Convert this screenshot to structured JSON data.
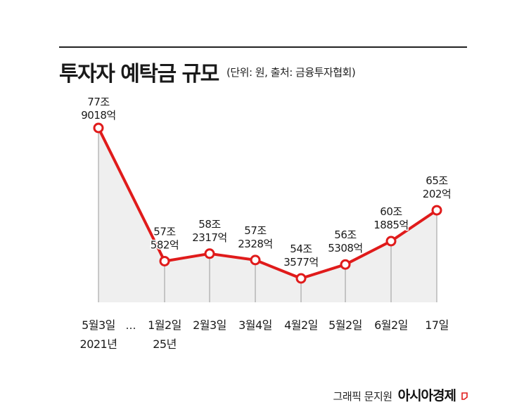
{
  "header": {
    "title": "투자자 예탁금 규모",
    "subtitle": "(단위: 원, 출처: 금융투자협회)"
  },
  "credit": {
    "author": "그래픽 문지원",
    "brand": "아시아경제"
  },
  "colors": {
    "line": "#e01b1b",
    "area": "#efefef",
    "drop": "#9a9a9a"
  },
  "chart_data": {
    "type": "line",
    "title": "투자자 예탁금 규모",
    "unit": "원",
    "categories": [
      "5월3일 2021년",
      "1월2일 25년",
      "2월3일",
      "3월4일",
      "4월2일",
      "5월2일",
      "6월2일",
      "17일"
    ],
    "x_tick_lines": [
      [
        "5월3일",
        "2021년"
      ],
      [
        "1월2일",
        "25년"
      ],
      [
        "2월3일"
      ],
      [
        "3월4일"
      ],
      [
        "4월2일"
      ],
      [
        "5월2일"
      ],
      [
        "6월2일"
      ],
      [
        "17일"
      ]
    ],
    "axis_break_label": "…",
    "values": [
      779018,
      570582,
      582317,
      572328,
      543577,
      565308,
      601885,
      650202
    ],
    "value_unit": "억원",
    "labels": [
      [
        "77조",
        "9018억"
      ],
      [
        "57조",
        "582억"
      ],
      [
        "58조",
        "2317억"
      ],
      [
        "57조",
        "2328억"
      ],
      [
        "54조",
        "3577억"
      ],
      [
        "56조",
        "5308억"
      ],
      [
        "60조",
        "1885억"
      ],
      [
        "65조",
        "202억"
      ]
    ],
    "legend": "none",
    "grid": false
  }
}
